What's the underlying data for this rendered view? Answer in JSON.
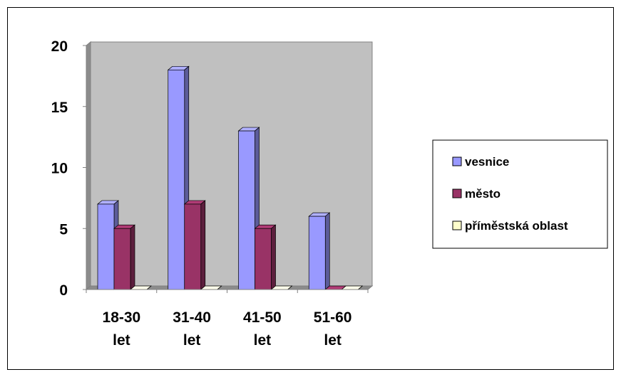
{
  "chart_data": {
    "type": "bar",
    "categories": [
      [
        "18-30",
        "let"
      ],
      [
        "31-40",
        "let"
      ],
      [
        "41-50",
        "let"
      ],
      [
        "51-60",
        "let"
      ]
    ],
    "series": [
      {
        "name": "vesnice",
        "values": [
          7,
          18,
          13,
          6
        ],
        "color": "#9999ff"
      },
      {
        "name": "město",
        "values": [
          5,
          7,
          5,
          0
        ],
        "color": "#993366"
      },
      {
        "name": "příměstská oblast",
        "values": [
          0,
          0,
          0,
          0
        ],
        "color": "#ffffcc"
      }
    ],
    "ylim": [
      0,
      20
    ],
    "yticks": [
      0,
      5,
      10,
      15,
      20
    ],
    "plot_background": "#c0c0c0",
    "legend_position": "right",
    "three_d": true,
    "grid": false
  }
}
